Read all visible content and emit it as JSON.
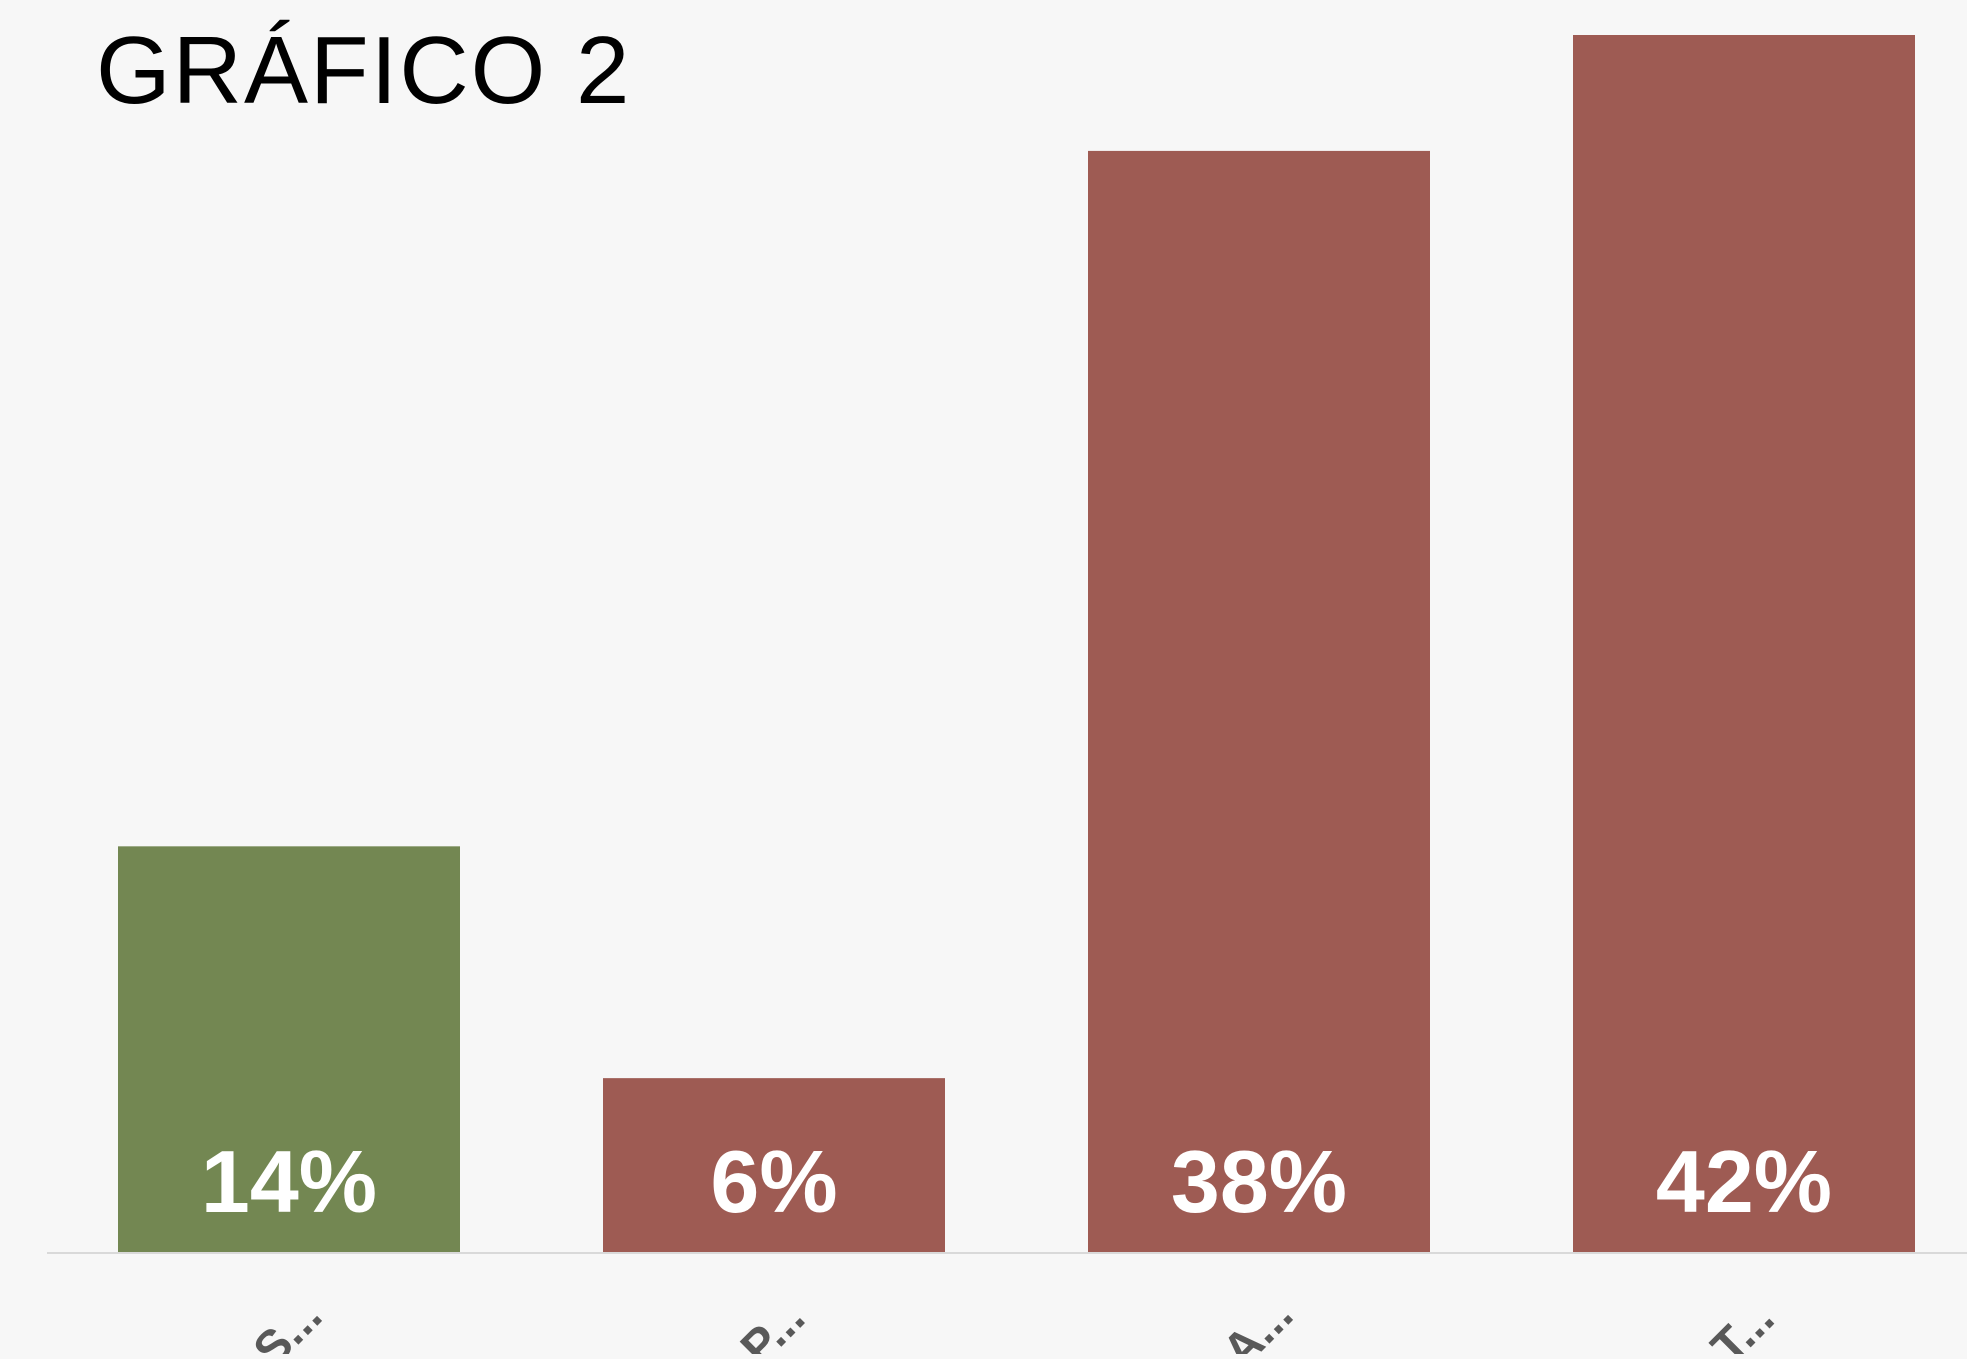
{
  "chart_data": {
    "type": "bar",
    "title": "GRÁFICO 2",
    "categories": [
      "S...",
      "P...",
      "A...",
      "T..."
    ],
    "values": [
      14,
      6,
      38,
      42
    ],
    "value_labels": [
      "14%",
      "6%",
      "38%",
      "42%"
    ],
    "bar_colors": [
      "#738752",
      "#9e5b53",
      "#9e5b53",
      "#9e5b53"
    ],
    "ylim": [
      0,
      42
    ],
    "xlabel": "",
    "ylabel": "",
    "grid": false,
    "legend": "none",
    "tick_label_rotation": "diagonal"
  },
  "colors": {
    "background": "#f7f7f7",
    "axis_line": "#d9d9d9",
    "data_label": "#ffffff",
    "tick_label": "#595959"
  }
}
